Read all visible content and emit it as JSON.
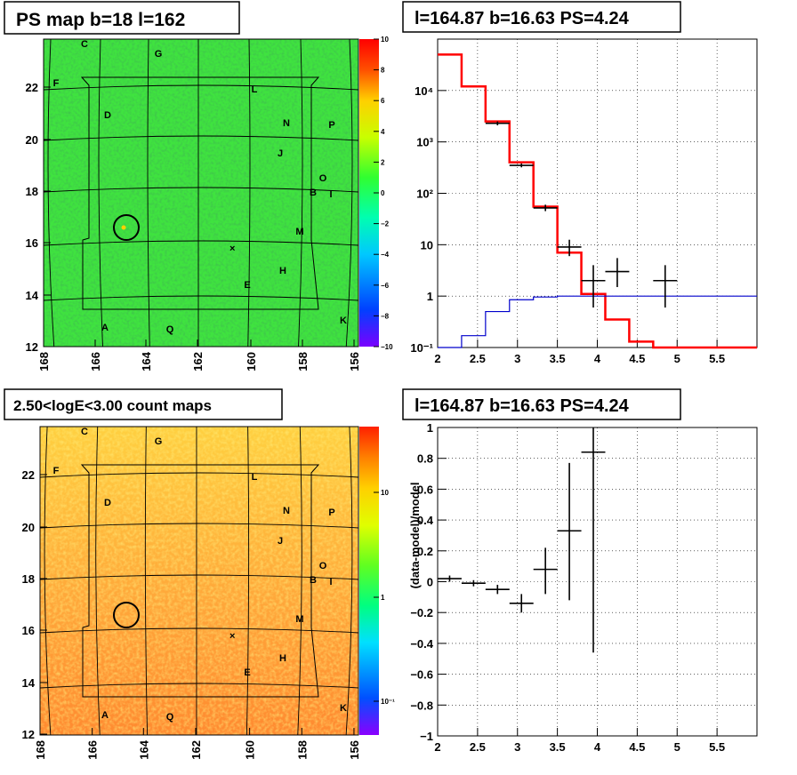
{
  "panels": {
    "ps_map": {
      "title": "PS map b=18 l=162",
      "x_ticks": [
        "168",
        "166",
        "164",
        "162",
        "160",
        "158",
        "156"
      ],
      "y_ticks": [
        "12",
        "14",
        "16",
        "18",
        "20",
        "22"
      ],
      "colorbar_ticks": [
        "10",
        "8",
        "6",
        "4",
        "2",
        "0",
        "−2",
        "−4",
        "−6",
        "−8",
        "−10"
      ],
      "colors": {
        "base": "#3fe33f",
        "ring": "#000000"
      }
    },
    "spectrum": {
      "title": "l=164.87 b=16.63 PS=4.24"
    },
    "count_map": {
      "title": "2.50<logE<3.00 count maps",
      "x_ticks": [
        "168",
        "166",
        "164",
        "162",
        "160",
        "158",
        "156"
      ],
      "y_ticks": [
        "12",
        "14",
        "16",
        "18",
        "20",
        "22"
      ],
      "colorbar_ticks": [
        "10",
        "1",
        "10⁻¹"
      ],
      "colors": {
        "base": "#ff9a3a",
        "light": "#ffd83a"
      }
    },
    "residual": {
      "title": "l=164.87 b=16.63 PS=4.24"
    }
  },
  "source_labels": [
    "A",
    "B",
    "C",
    "D",
    "E",
    "F",
    "G",
    "H",
    "I",
    "J",
    "K",
    "L",
    "M",
    "N",
    "O",
    "P",
    "Q"
  ],
  "chart_data": [
    {
      "type": "heatmap",
      "title": "PS map b=18 l=162",
      "xlabel": "",
      "ylabel": "",
      "xlim": [
        168,
        156
      ],
      "ylim": [
        12,
        24
      ],
      "z_range": [
        -10,
        10
      ],
      "background_value": 0,
      "hotspot": {
        "l": 164.87,
        "b": 16.63
      },
      "colorscale": [
        "#7a00ff",
        "#0050ff",
        "#00c8ff",
        "#00ffb0",
        "#30ff30",
        "#c8ff00",
        "#ffd000",
        "#ff5000",
        "#ff0000"
      ]
    },
    {
      "type": "line",
      "title": "l=164.87 b=16.63 PS=4.24",
      "xlabel": "",
      "ylabel": "",
      "xlim": [
        2,
        6
      ],
      "ylim": [
        0.1,
        100000
      ],
      "yscale": "log",
      "grid": true,
      "x_ticks": [
        "2",
        "2.5",
        "3",
        "3.5",
        "4",
        "4.5",
        "5",
        "5.5"
      ],
      "y_ticks": [
        "10⁻¹",
        "1",
        "10",
        "10²",
        "10³",
        "10⁴"
      ],
      "series": [
        {
          "color": "#ff0000",
          "style": "step",
          "edges": [
            2.0,
            2.3,
            2.6,
            2.9,
            3.2,
            3.5,
            3.8,
            4.1,
            4.4,
            4.7,
            5.0,
            6.0
          ],
          "values": [
            50000,
            12000,
            2500,
            400,
            55,
            7,
            1.1,
            0.35,
            0.13,
            0.1,
            0.1
          ]
        },
        {
          "color": "#0000cc",
          "style": "step",
          "edges": [
            2.0,
            2.3,
            2.6,
            2.9,
            3.2,
            3.5,
            3.8,
            4.1,
            4.4,
            4.7,
            5.0,
            6.0
          ],
          "values": [
            0.08,
            0.17,
            0.5,
            0.85,
            0.96,
            1,
            1,
            1,
            1,
            1,
            1
          ]
        },
        {
          "color": "#000000",
          "style": "errorbar",
          "points": [
            {
              "x": 2.75,
              "y": 2300,
              "xerr": 0.15,
              "lo": 2100,
              "hi": 2500
            },
            {
              "x": 3.05,
              "y": 350,
              "xerr": 0.15,
              "lo": 320,
              "hi": 380
            },
            {
              "x": 3.35,
              "y": 52,
              "xerr": 0.15,
              "lo": 45,
              "hi": 60
            },
            {
              "x": 3.65,
              "y": 9,
              "xerr": 0.15,
              "lo": 6,
              "hi": 12.5
            },
            {
              "x": 3.95,
              "y": 2,
              "xerr": 0.15,
              "lo": 0.6,
              "hi": 4
            },
            {
              "x": 4.25,
              "y": 3,
              "xerr": 0.15,
              "lo": 1.5,
              "hi": 5.5
            },
            {
              "x": 4.85,
              "y": 2,
              "xerr": 0.15,
              "lo": 0.6,
              "hi": 4
            }
          ]
        }
      ]
    },
    {
      "type": "heatmap",
      "title": "2.50<logE<3.00 count maps",
      "xlabel": "",
      "ylabel": "",
      "xlim": [
        168,
        156
      ],
      "ylim": [
        12,
        24
      ],
      "z_scale": "log",
      "z_range": [
        0.05,
        30
      ],
      "colorscale": [
        "#8a00ff",
        "#0050ff",
        "#00e0ff",
        "#00ff80",
        "#60ff20",
        "#e0ff00",
        "#ffd000",
        "#ff8000",
        "#ff2000"
      ]
    },
    {
      "type": "scatter",
      "title": "l=164.87 b=16.63 PS=4.24",
      "xlabel": "",
      "ylabel": "(data-model)/model",
      "xlim": [
        2,
        6
      ],
      "ylim": [
        -1,
        1
      ],
      "grid": true,
      "x_ticks": [
        "2",
        "2.5",
        "3",
        "3.5",
        "4",
        "4.5",
        "5",
        "5.5"
      ],
      "y_ticks": [
        "−1",
        "−0.8",
        "−0.6",
        "−0.4",
        "−0.2",
        "0",
        "0.2",
        "0.4",
        "0.6",
        "0.8",
        "1"
      ],
      "points": [
        {
          "x": 2.15,
          "y": 0.02,
          "xerr": 0.15,
          "lo": 0,
          "hi": 0.04
        },
        {
          "x": 2.45,
          "y": -0.01,
          "xerr": 0.15,
          "lo": -0.03,
          "hi": 0.01
        },
        {
          "x": 2.75,
          "y": -0.05,
          "xerr": 0.15,
          "lo": -0.08,
          "hi": -0.02
        },
        {
          "x": 3.05,
          "y": -0.14,
          "xerr": 0.15,
          "lo": -0.2,
          "hi": -0.08
        },
        {
          "x": 3.35,
          "y": 0.08,
          "xerr": 0.15,
          "lo": -0.08,
          "hi": 0.22
        },
        {
          "x": 3.65,
          "y": 0.33,
          "xerr": 0.15,
          "lo": -0.12,
          "hi": 0.77
        },
        {
          "x": 3.95,
          "y": 0.84,
          "xerr": 0.15,
          "lo": -0.46,
          "hi": 1.0
        }
      ]
    }
  ]
}
